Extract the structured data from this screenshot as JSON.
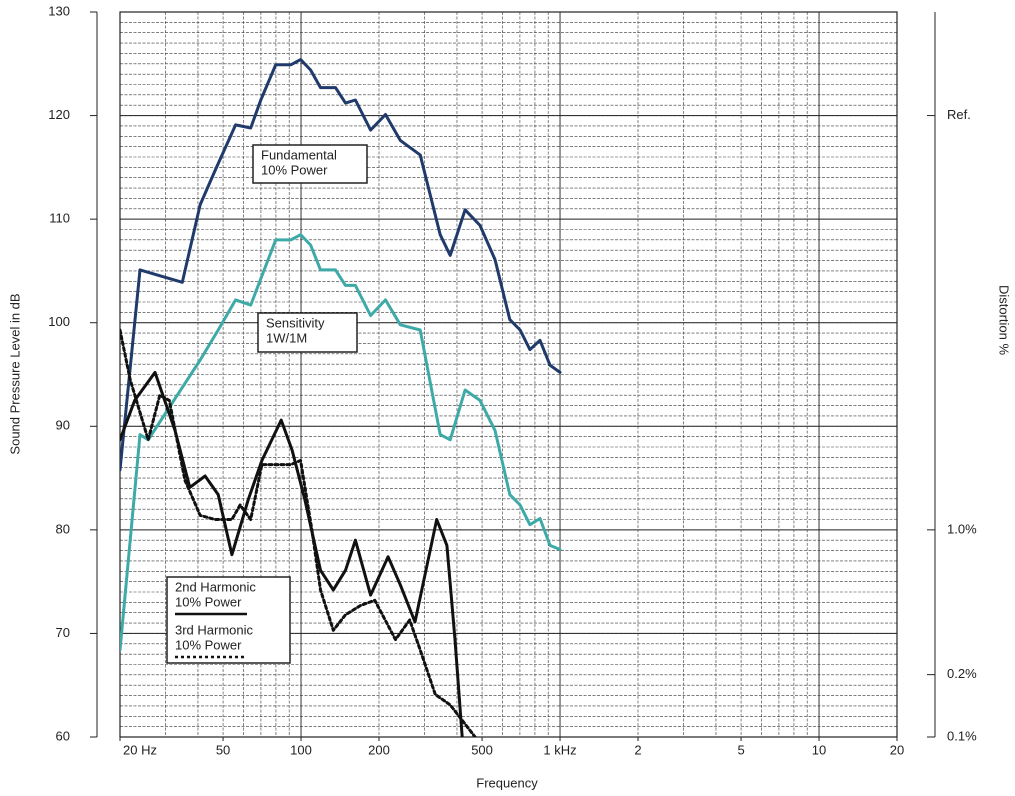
{
  "chart_data": {
    "type": "line",
    "x_label": "Frequency",
    "y_label": "Sound Pressure Level in dB",
    "y2_label": "Distortion %",
    "xscale": "log",
    "y2scale": "log",
    "grid": true,
    "xlim": [
      20,
      20000
    ],
    "xticks": [
      {
        "value": 20,
        "label": "20 Hz"
      },
      50,
      100,
      200,
      500,
      {
        "value": 1000,
        "label": "1 kHz"
      },
      {
        "value": 2000,
        "label": "2"
      },
      {
        "value": 5000,
        "label": "5"
      },
      {
        "value": 10000,
        "label": "10"
      },
      {
        "value": 20000,
        "label": "20"
      }
    ],
    "ylim": [
      60,
      130
    ],
    "yticks": [
      60,
      70,
      80,
      90,
      100,
      110,
      120,
      130
    ],
    "y2lim": [
      0.1,
      316.23
    ],
    "y2ticks": [
      {
        "value": 100,
        "label": "Ref."
      },
      {
        "value": 1,
        "label": "1.0%"
      },
      {
        "value": 0.2,
        "label": "0.2%"
      },
      {
        "value": 0.1,
        "label": "0.1%"
      }
    ],
    "series": [
      {
        "name": [
          "Fundamental",
          "10% Power"
        ],
        "color": "#1f3a6b",
        "dash": "solid",
        "x": [
          20,
          23.9,
          34.8,
          40.8,
          46.6,
          55.9,
          63.9,
          69.9,
          79.8,
          91.3,
          99.6,
          108.9,
          118.9,
          135.8,
          148.5,
          162.2,
          185.6,
          211.9,
          241.8,
          288.6,
          344.7,
          376.6,
          429.9,
          491,
          560.7,
          640,
          701,
          765,
          837,
          915,
          1000
        ],
        "values": [
          85.8,
          105.1,
          103.9,
          111.4,
          114.7,
          119.1,
          118.8,
          121.5,
          124.9,
          124.9,
          125.4,
          124.4,
          122.7,
          122.7,
          121.2,
          121.5,
          118.6,
          120.1,
          117.6,
          116.2,
          108.5,
          106.5,
          110.9,
          109.4,
          106.1,
          100.3,
          99.3,
          97.4,
          98.3,
          95.9,
          95.2
        ]
      },
      {
        "name": [
          "Sensitivity",
          "1W/1M"
        ],
        "color": "#3eaaa8",
        "dash": "solid",
        "x": [
          20,
          23.9,
          25.7,
          40.8,
          47.9,
          55.9,
          63.9,
          79.8,
          91.3,
          99.6,
          108.9,
          118.9,
          135.8,
          148.5,
          162.2,
          185.6,
          211.9,
          241.8,
          288.6,
          344.7,
          376.6,
          429.9,
          491,
          560.7,
          640,
          701,
          765,
          837,
          915,
          1000
        ],
        "values": [
          68.4,
          89.2,
          88.7,
          96.4,
          99.3,
          102.2,
          101.7,
          108.0,
          108.0,
          108.5,
          107.5,
          105.1,
          105.1,
          103.6,
          103.6,
          100.7,
          102.2,
          99.8,
          99.3,
          89.2,
          88.7,
          93.5,
          92.5,
          89.6,
          83.4,
          82.4,
          80.5,
          81.1,
          78.5,
          78.1
        ]
      },
      {
        "name": [
          "2nd Harmonic",
          "10% Power"
        ],
        "color": "#111111",
        "dash": "solid",
        "x": [
          20,
          22.8,
          27.3,
          32.6,
          37.2,
          42.6,
          47.9,
          54.1,
          62.5,
          70.6,
          83.8,
          92.4,
          103.5,
          118.9,
          133.2,
          148.5,
          162.2,
          185.6,
          216.9,
          241.8,
          275.4,
          334.1,
          365.6,
          393,
          419
        ],
        "values": [
          88.7,
          92.5,
          95.2,
          89.6,
          84.1,
          85.2,
          83.4,
          77.6,
          82.9,
          86.7,
          90.6,
          87.7,
          82.9,
          76.1,
          74.2,
          76.1,
          79.0,
          73.7,
          77.4,
          74.7,
          71.1,
          81.0,
          78.5,
          69.4,
          60.0
        ]
      },
      {
        "name": [
          "3rd Harmonic",
          "10% Power"
        ],
        "color": "#111111",
        "dash": "dotted",
        "x": [
          20,
          21.9,
          25.7,
          28.5,
          31,
          35.6,
          40.8,
          46.6,
          54.1,
          58.2,
          63.9,
          70.6,
          91.3,
          99.6,
          110.1,
          118.9,
          133.2,
          148.5,
          169.6,
          192.7,
          231.6,
          262.8,
          288.6,
          329.9,
          376.6,
          470
        ],
        "values": [
          99.3,
          94.5,
          88.7,
          93.0,
          92.5,
          84.8,
          81.4,
          81.0,
          81.0,
          82.4,
          81.0,
          86.3,
          86.3,
          86.7,
          80.0,
          74.2,
          70.3,
          71.8,
          72.7,
          73.2,
          69.4,
          71.3,
          68.4,
          64.1,
          63.1,
          60.0
        ]
      }
    ]
  }
}
